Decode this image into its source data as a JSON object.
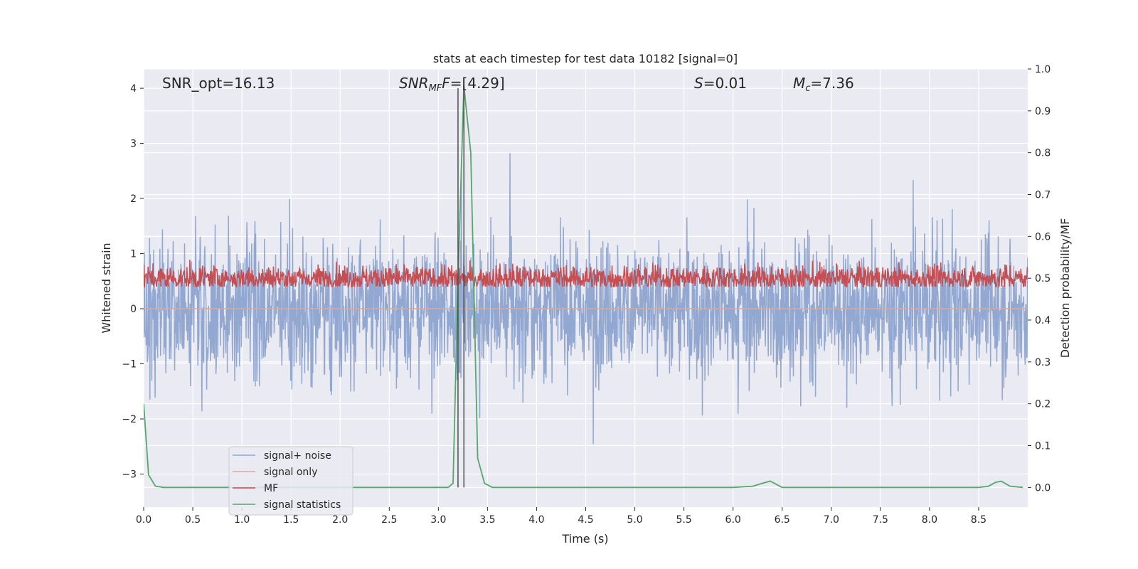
{
  "chart_data": {
    "type": "line",
    "title": "stats at each timestep for test data 10182 [signal=0]",
    "xlabel": "Time (s)",
    "ylabel_left": "Whitened strain",
    "ylabel_right": "Detection probability/MF",
    "xlim": [
      0.0,
      9.0
    ],
    "ylim_left": [
      -3.6,
      4.35
    ],
    "ylim_right": [
      -0.047,
      1.0
    ],
    "x_ticks": [
      "0.0",
      "0.5",
      "1.0",
      "1.5",
      "2.0",
      "2.5",
      "3.0",
      "3.5",
      "4.0",
      "4.5",
      "5.0",
      "5.5",
      "6.0",
      "6.5",
      "7.0",
      "7.5",
      "8.0",
      "8.5"
    ],
    "y_left_ticks": [
      "−3",
      "−2",
      "−1",
      "0",
      "1",
      "2",
      "3",
      "4"
    ],
    "y_right_ticks": [
      "0.0",
      "0.1",
      "0.2",
      "0.3",
      "0.4",
      "0.5",
      "0.6",
      "0.7",
      "0.8",
      "0.9",
      "1.0"
    ],
    "annotations": {
      "snr_opt": "SNR_opt=16.13",
      "snr_mf_label": "SNR",
      "snr_mf_sub": "MF",
      "snr_mf_value": "=[4.29]",
      "s_label": "S",
      "s_value": "=0.01",
      "mc_label": "M",
      "mc_sub": "c",
      "mc_value": "=7.36"
    },
    "vlines_x": [
      3.2,
      3.26
    ],
    "series": [
      {
        "name": "signal+ noise",
        "color": "#8ea4cf",
        "axis": "left",
        "kind": "noise",
        "std": 0.85,
        "range": [
          -3.3,
          4.0
        ]
      },
      {
        "name": "signal only",
        "color": "#e8a58a",
        "axis": "left",
        "kind": "constant",
        "value": 0.0
      },
      {
        "name": "MF",
        "color": "#c44e52",
        "axis": "right",
        "kind": "noise",
        "center": 0.5,
        "range": [
          0.48,
          0.63
        ]
      },
      {
        "name": "signal statistics",
        "color": "#55a868",
        "axis": "right",
        "kind": "line",
        "x": [
          0.0,
          0.05,
          0.12,
          0.2,
          0.3,
          3.0,
          3.1,
          3.15,
          3.2,
          3.26,
          3.33,
          3.4,
          3.47,
          3.55,
          6.0,
          6.2,
          6.3,
          6.38,
          6.5,
          6.6,
          8.5,
          8.6,
          8.67,
          8.73,
          8.82,
          8.95
        ],
        "y": [
          0.2,
          0.03,
          0.003,
          0.0,
          0.0,
          0.0,
          0.0,
          0.01,
          0.5,
          0.96,
          0.8,
          0.07,
          0.01,
          0.0,
          0.0,
          0.003,
          0.01,
          0.015,
          0.0,
          0.0,
          0.0,
          0.003,
          0.012,
          0.015,
          0.003,
          0.0
        ]
      }
    ],
    "legend": {
      "position": "lower-left"
    },
    "grid": true
  }
}
